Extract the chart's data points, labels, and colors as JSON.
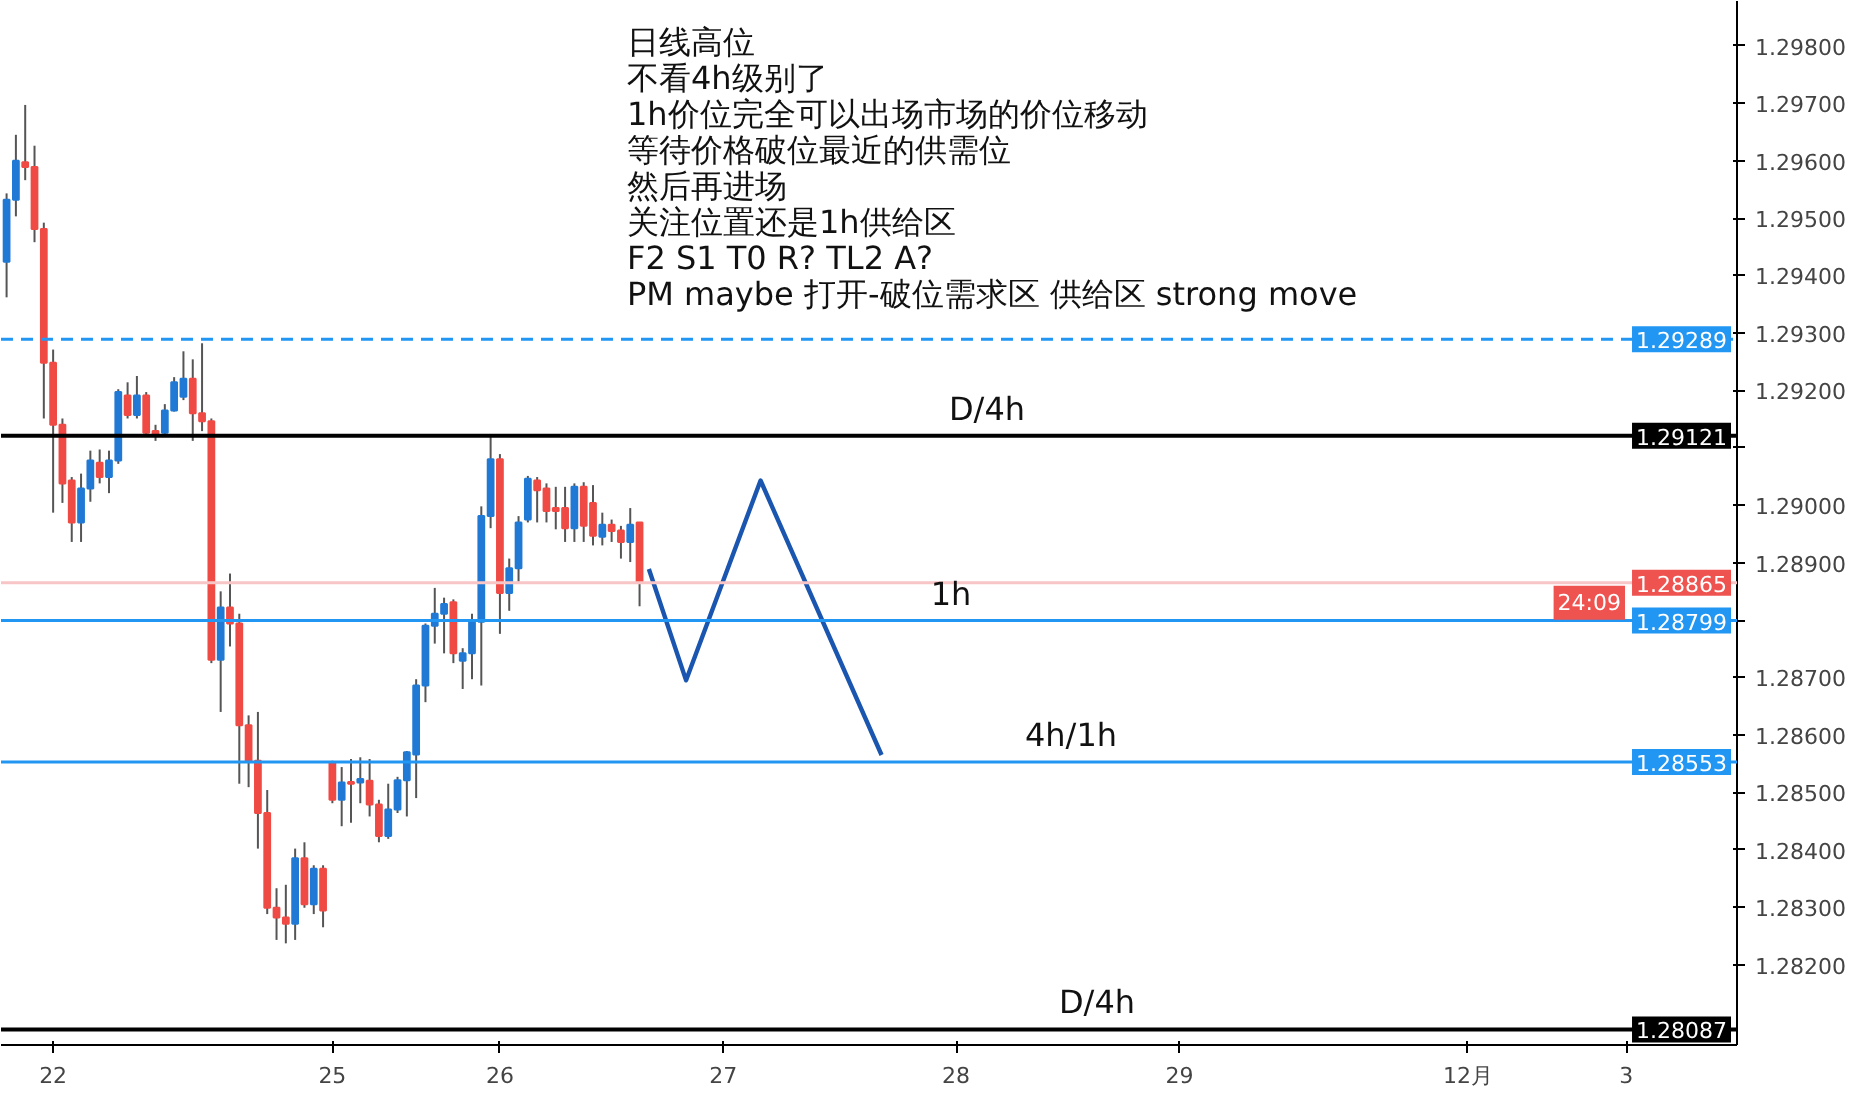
{
  "chart_data": {
    "type": "candlestick",
    "categories": [
      null,
      null,
      null,
      null,
      null,
      "22",
      null,
      null,
      null,
      null,
      null,
      null,
      null,
      null,
      null,
      null,
      null,
      null,
      null,
      null,
      null,
      null,
      null,
      null,
      null,
      null,
      null,
      null,
      null,
      null,
      null,
      null,
      null,
      null,
      null,
      "25",
      null,
      null,
      null,
      null,
      null,
      null,
      null,
      null,
      null,
      null,
      null,
      null,
      null,
      null,
      null,
      null,
      null,
      "26",
      null,
      null,
      null,
      null,
      null,
      null,
      null,
      null,
      null,
      null,
      null,
      null,
      null,
      null,
      null,
      null,
      null,
      null,
      null,
      null,
      null,
      null,
      null,
      "27",
      null,
      null,
      null,
      null,
      null,
      null,
      null,
      null,
      null,
      null,
      null,
      null,
      null,
      null,
      null,
      null,
      null,
      null,
      null,
      null,
      null,
      null,
      null,
      null,
      "28",
      null,
      null,
      null,
      null,
      null,
      null,
      null,
      null,
      null,
      null,
      null,
      null,
      null,
      null,
      null,
      null,
      null,
      null,
      null,
      null,
      null,
      null,
      null,
      "29",
      null,
      null,
      null,
      null,
      null,
      null,
      null,
      null,
      null,
      null,
      null,
      null,
      null,
      null,
      null,
      null,
      null,
      null,
      null,
      null,
      null,
      null,
      null,
      null,
      null,
      null,
      null,
      null,
      null,
      null,
      "12月",
      null,
      null,
      null,
      null,
      null,
      null,
      null,
      null,
      null,
      null,
      null,
      null,
      null,
      null,
      null,
      null,
      "3",
      null,
      null,
      null,
      null,
      null,
      null,
      null,
      null,
      null,
      null,
      null,
      null
    ],
    "ohlc": [
      [
        1.29424,
        1.29543,
        1.29362,
        1.29532
      ],
      [
        1.29532,
        1.29645,
        1.29503,
        1.296
      ],
      [
        1.29597,
        1.29697,
        1.29566,
        1.29589
      ],
      [
        1.29589,
        1.29626,
        1.29458,
        1.29481
      ],
      [
        1.29481,
        1.29492,
        1.29151,
        1.29248
      ],
      [
        1.29248,
        1.29271,
        1.28987,
        1.2914
      ],
      [
        1.2914,
        1.29151,
        1.29004,
        1.29038
      ],
      [
        1.29043,
        1.29049,
        1.28936,
        1.2897
      ],
      [
        1.2897,
        1.29055,
        1.28936,
        1.29029
      ],
      [
        1.29029,
        1.29095,
        1.29006,
        1.29078
      ],
      [
        1.29074,
        1.29097,
        1.29038,
        1.29049
      ],
      [
        1.29049,
        1.29095,
        1.29021,
        1.29078
      ],
      [
        1.29078,
        1.29202,
        1.29072,
        1.29197
      ],
      [
        1.29191,
        1.29214,
        1.29151,
        1.29157
      ],
      [
        1.29157,
        1.29225,
        1.29151,
        1.29191
      ],
      [
        1.29191,
        1.29197,
        1.2912,
        1.29126
      ],
      [
        1.29129,
        1.2914,
        1.29112,
        1.29123
      ],
      [
        1.29126,
        1.29176,
        1.2912,
        1.29165
      ],
      [
        1.29165,
        1.29223,
        1.29163,
        1.29214
      ],
      [
        1.29189,
        1.29268,
        1.29183,
        1.2922
      ],
      [
        1.2922,
        1.29254,
        1.29112,
        1.2916
      ],
      [
        1.2916,
        1.29282,
        1.29129,
        1.29146
      ],
      [
        1.29146,
        1.29151,
        1.28725,
        1.28731
      ],
      [
        1.28731,
        1.2885,
        1.2864,
        1.28822
      ],
      [
        1.28822,
        1.28881,
        1.28754,
        1.28794
      ],
      [
        1.28794,
        1.28811,
        1.28515,
        1.28617
      ],
      [
        1.28617,
        1.28634,
        1.28509,
        1.28555
      ],
      [
        1.28555,
        1.2864,
        1.28402,
        1.28464
      ],
      [
        1.28464,
        1.28504,
        1.28288,
        1.28299
      ],
      [
        1.28299,
        1.28333,
        1.28243,
        1.28282
      ],
      [
        1.28282,
        1.28339,
        1.28237,
        1.28271
      ],
      [
        1.28271,
        1.28402,
        1.28243,
        1.28385
      ],
      [
        1.28385,
        1.28413,
        1.28299,
        1.28305
      ],
      [
        1.28305,
        1.28373,
        1.28288,
        1.28367
      ],
      [
        1.28367,
        1.28373,
        1.28265,
        1.28294
      ],
      [
        1.28552,
        1.28555,
        1.28481,
        1.28487
      ],
      [
        1.28487,
        1.28544,
        1.28441,
        1.28517
      ],
      [
        1.28518,
        1.28558,
        1.28447,
        1.28515
      ],
      [
        1.28517,
        1.28561,
        1.28481,
        1.28523
      ],
      [
        1.2852,
        1.28558,
        1.28458,
        1.28479
      ],
      [
        1.28479,
        1.28487,
        1.28413,
        1.28424
      ],
      [
        1.28424,
        1.28515,
        1.28419,
        1.2847
      ],
      [
        1.2847,
        1.28527,
        1.28464,
        1.28521
      ],
      [
        1.28521,
        1.28572,
        1.28458,
        1.2857
      ],
      [
        1.28566,
        1.28697,
        1.2849,
        1.28686
      ],
      [
        1.28686,
        1.28794,
        1.28657,
        1.2879
      ],
      [
        1.2879,
        1.28856,
        1.28759,
        1.28811
      ],
      [
        1.28811,
        1.28839,
        1.28742,
        1.28828
      ],
      [
        1.28831,
        1.28836,
        1.28725,
        1.28742
      ],
      [
        1.28729,
        1.28751,
        1.2868,
        1.28742
      ],
      [
        1.28742,
        1.28811,
        1.28697,
        1.28797
      ],
      [
        1.28797,
        1.28998,
        1.28686,
        1.28981
      ],
      [
        1.28981,
        1.2912,
        1.2896,
        1.2908
      ],
      [
        1.2908,
        1.29089,
        1.28776,
        1.28847
      ],
      [
        1.28847,
        1.28907,
        1.28816,
        1.2889
      ],
      [
        1.2889,
        1.28981,
        1.28867,
        1.2897
      ],
      [
        1.28975,
        1.29051,
        1.2897,
        1.29046
      ],
      [
        1.29043,
        1.29049,
        1.2897,
        1.29026
      ],
      [
        1.29029,
        1.29038,
        1.2897,
        1.2899
      ],
      [
        1.28995,
        1.29032,
        1.28958,
        1.2899
      ],
      [
        1.28995,
        1.29032,
        1.28936,
        1.2896
      ],
      [
        1.2896,
        1.29038,
        1.28936,
        1.29032
      ],
      [
        1.29032,
        1.2904,
        1.28936,
        1.28964
      ],
      [
        1.29004,
        1.29035,
        1.2893,
        1.28947
      ],
      [
        1.28945,
        1.28987,
        1.2893,
        1.28966
      ],
      [
        1.28966,
        1.28975,
        1.28936,
        1.28955
      ],
      [
        1.28956,
        1.28964,
        1.28907,
        1.28936
      ],
      [
        1.28936,
        1.28995,
        1.28901,
        1.28966
      ],
      [
        1.2897,
        1.2897,
        1.28824,
        1.28865
      ],
      null,
      null,
      null,
      null,
      null,
      null,
      null,
      null,
      null,
      null,
      null,
      null,
      null,
      null,
      null,
      null,
      null,
      null,
      null,
      null,
      null,
      null,
      null,
      null,
      null,
      null,
      null,
      null,
      null,
      null,
      null,
      null,
      null,
      null,
      null,
      null,
      null,
      null,
      null,
      null,
      null,
      null,
      null,
      null,
      null,
      null,
      null,
      null,
      null,
      null,
      null,
      null,
      null,
      null,
      null,
      null,
      null,
      null,
      null,
      null,
      null,
      null,
      null,
      null,
      null,
      null,
      null,
      null,
      null,
      null,
      null,
      null,
      null,
      null,
      null,
      null,
      null,
      null,
      null,
      null,
      null,
      null,
      null,
      null,
      null,
      null,
      null,
      null,
      null,
      null,
      null,
      null,
      null,
      null,
      null,
      null,
      null,
      null,
      null,
      null,
      null,
      null,
      null,
      null,
      null,
      null,
      null,
      null,
      null,
      null,
      null,
      null,
      null,
      null,
      null,
      null,
      null,
      null
    ],
    "colors": [
      "#2079d4",
      "#2079d4",
      "#f04a45",
      "#f04a45",
      "#f04a45",
      "#f04a45",
      "#f04a45",
      "#f04a45",
      "#2079d4",
      "#2079d4",
      "#f04a45",
      "#2079d4",
      "#2079d4",
      "#f04a45",
      "#2079d4",
      "#f04a45",
      "#f04a45",
      "#2079d4",
      "#2079d4",
      "#2079d4",
      "#f04a45",
      "#f04a45",
      "#f04a45",
      "#2079d4",
      "#f04a45",
      "#f04a45",
      "#f04a45",
      "#f04a45",
      "#f04a45",
      "#f04a45",
      "#f04a45",
      "#2079d4",
      "#f04a45",
      "#2079d4",
      "#f04a45",
      "#f04a45",
      "#2079d4",
      "#f04a45",
      "#2079d4",
      "#f04a45",
      "#f04a45",
      "#2079d4",
      "#2079d4",
      "#2079d4",
      "#2079d4",
      "#2079d4",
      "#2079d4",
      "#2079d4",
      "#f04a45",
      "#2079d4",
      "#2079d4",
      "#2079d4",
      "#2079d4",
      "#f04a45",
      "#2079d4",
      "#2079d4",
      "#2079d4",
      "#f04a45",
      "#f04a45",
      "#f04a45",
      "#f04a45",
      "#2079d4",
      "#f04a45",
      "#f04a45",
      "#2079d4",
      "#f04a45",
      "#f04a45",
      "#2079d4",
      "#f04a45",
      null,
      null,
      null,
      null,
      null,
      null,
      null,
      null,
      null,
      null,
      null,
      null,
      null,
      null,
      null,
      null,
      null,
      null,
      null,
      null,
      null,
      null,
      null,
      null,
      null,
      null,
      null,
      null,
      null,
      null,
      null,
      null,
      null,
      null,
      null,
      null,
      null,
      null,
      null,
      null,
      null,
      null,
      null,
      null,
      null,
      null,
      null,
      null,
      null,
      null,
      null,
      null,
      null,
      null,
      null,
      null,
      null,
      null,
      null,
      null,
      null,
      null,
      null,
      null,
      null,
      null,
      null,
      null,
      null,
      null,
      null,
      null,
      null,
      null,
      null,
      null,
      null,
      null,
      null,
      null,
      null,
      null,
      null,
      null,
      null,
      null,
      null,
      null,
      null,
      null,
      null,
      null,
      null,
      null,
      null,
      null,
      null,
      null,
      null,
      null,
      null,
      null,
      null,
      null,
      null,
      null,
      null,
      null,
      null,
      null,
      null,
      null,
      null,
      null,
      null,
      null,
      null,
      null
    ],
    "series": [
      {
        "type": "line",
        "color": "#1a56b0",
        "values": [
          null,
          null,
          null,
          null,
          null,
          null,
          null,
          null,
          null,
          null,
          null,
          null,
          null,
          null,
          null,
          null,
          null,
          null,
          null,
          null,
          null,
          null,
          null,
          null,
          null,
          null,
          null,
          null,
          null,
          null,
          null,
          null,
          null,
          null,
          null,
          null,
          null,
          null,
          null,
          null,
          null,
          null,
          null,
          null,
          null,
          null,
          null,
          null,
          null,
          null,
          null,
          null,
          null,
          null,
          null,
          null,
          null,
          null,
          null,
          null,
          null,
          null,
          null,
          null,
          null,
          null,
          null,
          null,
          null,
          1.28889,
          null,
          null,
          null,
          1.28695,
          null,
          null,
          null,
          null,
          null,
          null,
          null,
          1.29043,
          null,
          null,
          null,
          null,
          null,
          null,
          null,
          null,
          null,
          null,
          null,
          null,
          1.28565,
          null,
          null,
          null,
          null,
          null,
          null,
          null,
          null,
          null,
          null,
          null,
          null,
          null,
          null,
          null,
          null,
          null,
          null,
          null,
          null,
          null,
          null,
          null,
          null,
          null,
          null,
          null,
          null,
          null,
          null,
          null,
          null,
          null,
          null,
          null,
          null,
          null,
          null,
          null,
          null,
          null,
          null,
          null,
          null,
          null,
          null,
          null,
          null,
          null,
          null,
          null,
          null,
          null,
          null,
          null,
          null,
          null,
          null,
          null,
          null,
          null,
          null,
          null,
          null,
          null,
          null,
          null,
          null,
          null,
          null,
          null,
          null,
          null,
          null,
          null,
          null,
          null,
          null,
          null,
          null,
          null,
          null,
          null,
          null,
          null,
          null,
          null,
          null,
          null,
          null,
          null,
          null
        ]
      }
    ],
    "ylim": [
      1.2806,
      1.29878
    ],
    "yticks": [
      {
        "value": 1.282,
        "label": "1.28200"
      },
      {
        "value": 1.283,
        "label": "1.28300"
      },
      {
        "value": 1.284,
        "label": "1.28400"
      },
      {
        "value": 1.285,
        "label": "1.28500"
      },
      {
        "value": 1.286,
        "label": "1.28600"
      },
      {
        "value": 1.287,
        "label": "1.28700"
      },
      {
        "value": 1.288,
        "label": null
      },
      {
        "value": 1.289,
        "label": "1.28900"
      },
      {
        "value": 1.29,
        "label": "1.29000"
      },
      {
        "value": 1.291,
        "label": null
      },
      {
        "value": 1.292,
        "label": "1.29200"
      },
      {
        "value": 1.293,
        "label": "1.29300"
      },
      {
        "value": 1.294,
        "label": "1.29400"
      },
      {
        "value": 1.295,
        "label": "1.29500"
      },
      {
        "value": 1.296,
        "label": "1.29600"
      },
      {
        "value": 1.297,
        "label": "1.29700"
      },
      {
        "value": 1.298,
        "label": "1.29800"
      }
    ],
    "ref_lines": [
      {
        "axis": "y",
        "value": 1.29289,
        "label": "1.29289",
        "color": "#2196f3",
        "line_style": "dashed"
      },
      {
        "axis": "y",
        "value": 1.29121,
        "label": "1.29121",
        "color": "#000000"
      },
      {
        "axis": "y",
        "value": 1.28865,
        "label": "1.28865",
        "color": "#f7c5c5"
      },
      {
        "axis": "y",
        "value": 1.28799,
        "label": "1.28799",
        "color": "#2196f3"
      },
      {
        "axis": "y",
        "value": 1.28553,
        "label": "1.28553",
        "color": "#2196f3"
      },
      {
        "axis": "y",
        "value": 1.28087,
        "label": "1.28087",
        "color": "#000000"
      }
    ],
    "annotations": [
      "日线高位",
      "不看4h级别了",
      "1h价位完全可以出场市场的价位移动",
      "等待价格破位最近的供需位",
      "然后再进场",
      "关注位置还是1h供给区",
      "F2 S1 T0 R? TL2 A?",
      "PM maybe 打开-破位需求区 供给区 strong move",
      {
        "text": "D/4h",
        "y": 1.29121
      },
      {
        "text": "1h",
        "y": 1.28799
      },
      {
        "text": "4h/1h",
        "y": 1.28553
      },
      {
        "text": "D/4h",
        "y": 1.28087
      },
      {
        "text": "24:09",
        "y": 1.2883
      }
    ],
    "grid": false
  }
}
